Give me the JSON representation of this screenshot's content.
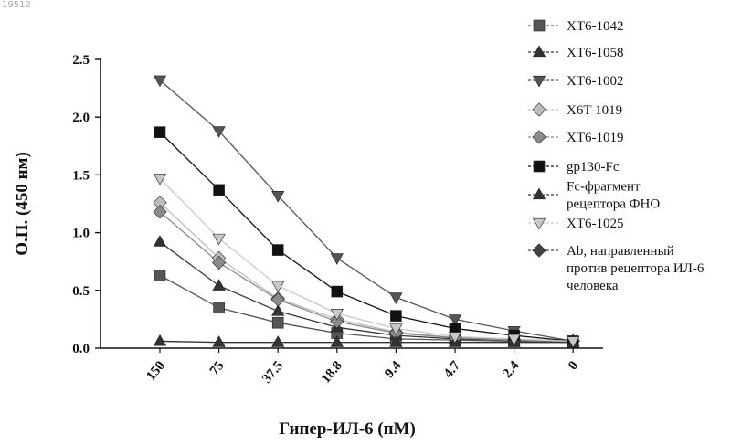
{
  "stamp": "19512",
  "chart_data": {
    "type": "line",
    "title": "",
    "xlabel": "Гипер-ИЛ-6 (пМ)",
    "ylabel": "О.П. (450 нм)",
    "categories": [
      "150",
      "75",
      "37.5",
      "18.8",
      "9.4",
      "4.7",
      "2.4",
      "0"
    ],
    "ylim": [
      0,
      2.5
    ],
    "yticks": [
      "0.0",
      "0.5",
      "1.0",
      "1.5",
      "2.0",
      "2.5"
    ],
    "grid": false,
    "legend_position": "right",
    "series": [
      {
        "name": "XT6-1042",
        "marker": "square",
        "color": "#555555",
        "values": [
          0.63,
          0.35,
          0.22,
          0.13,
          0.08,
          0.07,
          0.06,
          0.05
        ]
      },
      {
        "name": "XT6-1058",
        "marker": "triangle-up",
        "color": "#333333",
        "values": [
          0.92,
          0.54,
          0.32,
          0.18,
          0.11,
          0.08,
          0.07,
          0.06
        ]
      },
      {
        "name": "XT6-1002",
        "marker": "triangle-down",
        "color": "#555555",
        "values": [
          2.32,
          1.88,
          1.32,
          0.78,
          0.44,
          0.25,
          0.15,
          0.06
        ]
      },
      {
        "name": "X6T-1019",
        "marker": "diamond",
        "color": "#bdbdbd",
        "values": [
          1.26,
          0.78,
          0.43,
          0.25,
          0.14,
          0.09,
          0.07,
          0.06
        ]
      },
      {
        "name": "XT6-1019",
        "marker": "diamond",
        "color": "#8a8a8a",
        "values": [
          1.18,
          0.74,
          0.42,
          0.23,
          0.13,
          0.09,
          0.07,
          0.06
        ]
      },
      {
        "name": "gp130-Fc",
        "marker": "square",
        "color": "#111111",
        "values": [
          1.87,
          1.37,
          0.85,
          0.49,
          0.28,
          0.17,
          0.11,
          0.06
        ]
      },
      {
        "name": "Fc-фрагмент рецептора ФНО",
        "marker": "triangle-up",
        "color": "#333333",
        "values": [
          0.06,
          0.05,
          0.05,
          0.05,
          0.05,
          0.05,
          0.05,
          0.05
        ]
      },
      {
        "name": "XT6-1025",
        "marker": "triangle-down",
        "color": "#c8c8c8",
        "values": [
          1.47,
          0.95,
          0.54,
          0.3,
          0.17,
          0.1,
          0.08,
          0.06
        ]
      },
      {
        "name": "Ab, направленный против рецептора ИЛ-6 человека",
        "marker": "diamond",
        "color": "#444444",
        "values": [
          null,
          null,
          null,
          null,
          null,
          null,
          null,
          null
        ]
      }
    ],
    "legend_labels": [
      [
        "XT6-1042"
      ],
      [
        "XT6-1058"
      ],
      [
        "XT6-1002"
      ],
      [
        "X6T-1019"
      ],
      [
        "XT6-1019"
      ],
      [
        "gp130-Fc"
      ],
      [
        "Fc-фрагмент",
        "рецептора ФНО"
      ],
      [
        "XT6-1025"
      ],
      [
        "Ab, направленный",
        "против рецептора ИЛ-6",
        "человека"
      ]
    ]
  }
}
